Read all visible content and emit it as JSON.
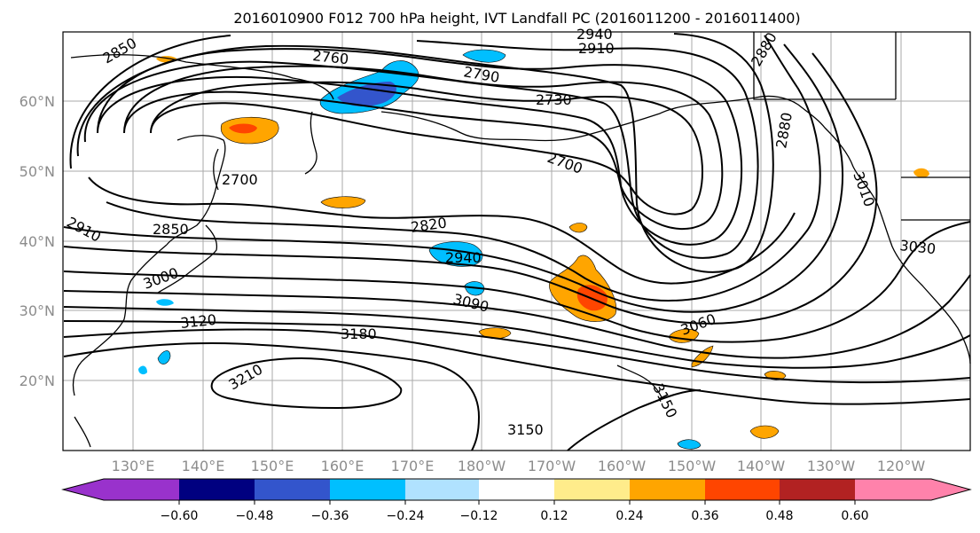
{
  "title": "2016010900 F012 700 hPa height, IVT Landfall PC (2016011200 - 2016011400)",
  "map": {
    "lon_labels": [
      "130°E",
      "140°E",
      "150°E",
      "160°E",
      "170°E",
      "180°W",
      "170°W",
      "160°W",
      "150°W",
      "140°W",
      "130°W",
      "120°W"
    ],
    "lat_labels": [
      "60°N",
      "50°N",
      "40°N",
      "30°N",
      "20°N"
    ],
    "contour_labels": [
      "2850",
      "2760",
      "2940",
      "2910",
      "2880",
      "2790",
      "2730",
      "2880",
      "2700",
      "2700",
      "2820",
      "2910",
      "2850",
      "2940",
      "3000",
      "3090",
      "3030",
      "3120",
      "3180",
      "3060",
      "3210",
      "3150",
      "3150",
      "3010"
    ]
  },
  "colorbar": {
    "ticks": [
      "−0.60",
      "−0.48",
      "−0.36",
      "−0.24",
      "−0.12",
      "0.12",
      "0.24",
      "0.36",
      "0.48",
      "0.60"
    ],
    "colors": [
      "#9932cc",
      "#000080",
      "#3355cc",
      "#00bfff",
      "#b0e2ff",
      "#ffffff",
      "#ffec8b",
      "#ffa500",
      "#ff4500",
      "#b22222",
      "#ff82ab"
    ]
  }
}
